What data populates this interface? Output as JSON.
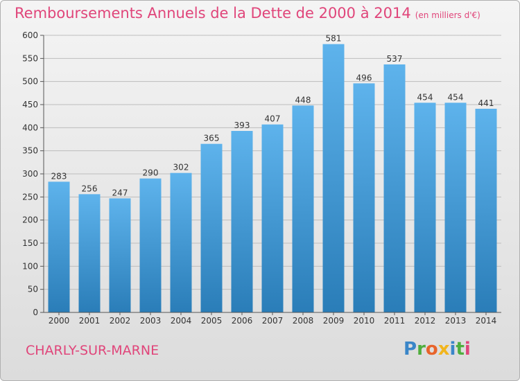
{
  "title": "Remboursements Annuels de la Dette de 2000 à 2014",
  "unit": "(en milliers d'€)",
  "commune": "CHARLY-SUR-MARNE",
  "logo": "Proxiti",
  "colors": {
    "title": "#e0457a",
    "bar_top": "#5eb3ec",
    "bar_bottom": "#2a7db8",
    "grid": "#bdbdbd"
  },
  "chart_data": {
    "type": "bar",
    "categories": [
      "2000",
      "2001",
      "2002",
      "2003",
      "2004",
      "2005",
      "2006",
      "2007",
      "2008",
      "2009",
      "2010",
      "2011",
      "2012",
      "2013",
      "2014"
    ],
    "values": [
      283,
      256,
      247,
      290,
      302,
      365,
      393,
      407,
      448,
      581,
      496,
      537,
      454,
      454,
      441
    ],
    "yticks": [
      0,
      50,
      100,
      150,
      200,
      250,
      300,
      350,
      400,
      450,
      500,
      550,
      600
    ],
    "ylim": [
      0,
      600
    ],
    "grid": true,
    "legend": "none"
  }
}
